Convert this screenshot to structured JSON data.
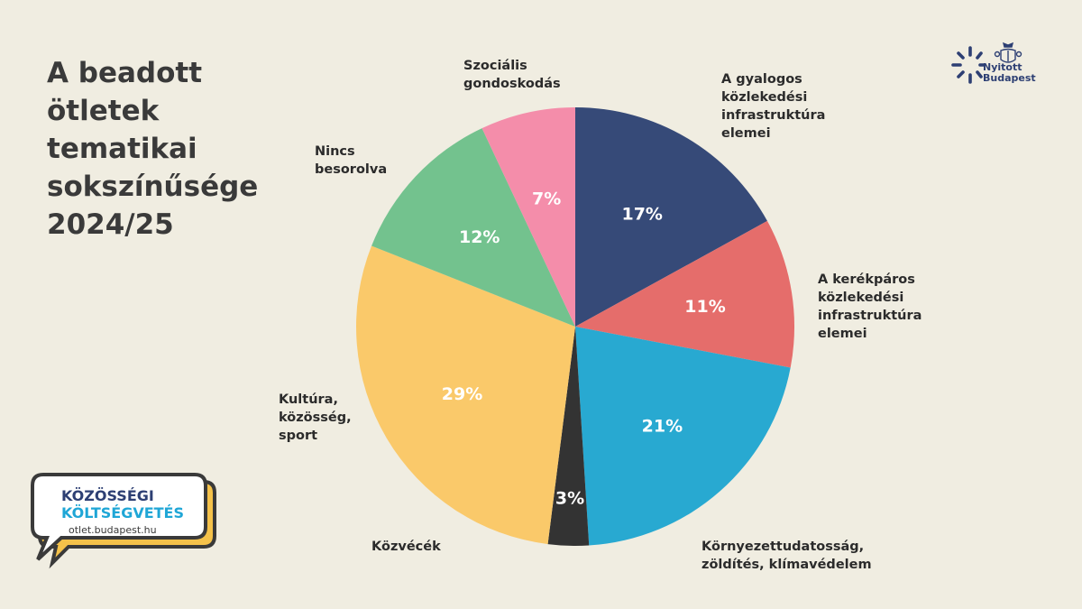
{
  "title": "A beadott ötletek tematikai sokszínűsége 2024/25",
  "logo": {
    "text": "Nyitott\nBudapest",
    "icon": "sunburst-icon",
    "color": "#2d3f73"
  },
  "badge": {
    "line1": "KÖZÖSSÉGI",
    "line2": "KÖLTSÉGVETÉS",
    "url": "otlet.budapest.hu"
  },
  "colors": {
    "background": "#f0ede1"
  },
  "chart_data": {
    "type": "pie",
    "slices": [
      {
        "label": "A gyalogos\nközlekedési\ninfrastruktúra\nelemei",
        "value": 17,
        "display": "17%",
        "color": "#364a78"
      },
      {
        "label": "A kerékpáros\nközlekedési\ninfrastruktúra\nelemei",
        "value": 11,
        "display": "11%",
        "color": "#e56d6b"
      },
      {
        "label": "Környezettudatosság,\nzöldítés, klímavédelem",
        "value": 21,
        "display": "21%",
        "color": "#28a9d1"
      },
      {
        "label": "Közvécék",
        "value": 3,
        "display": "3%",
        "color": "#333333"
      },
      {
        "label": "Kultúra,\nközösség,\nsport",
        "value": 29,
        "display": "29%",
        "color": "#fac96a"
      },
      {
        "label": "Nincs\nbesorolva",
        "value": 12,
        "display": "12%",
        "color": "#73c28e"
      },
      {
        "label": "Szociális\ngondoskodás",
        "value": 7,
        "display": "7%",
        "color": "#f48daa"
      }
    ]
  }
}
